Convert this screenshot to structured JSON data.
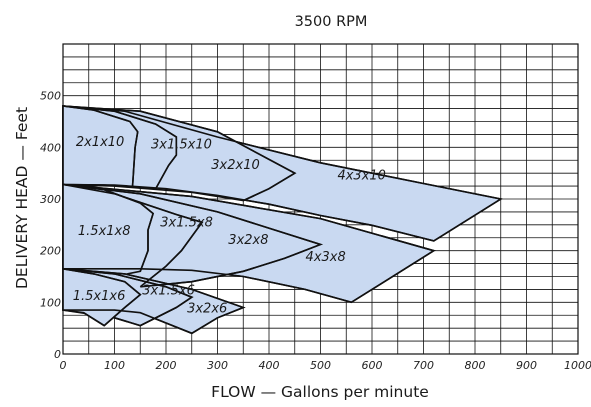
{
  "chart_data": {
    "type": "area",
    "title": "3500 RPM",
    "xlabel": "FLOW — Gallons per minute",
    "ylabel": "DELIVERY HEAD — Feet",
    "xlim": [
      0,
      1000
    ],
    "ylim": [
      0,
      600
    ],
    "x_ticks": [
      "0",
      "100",
      "200",
      "300",
      "400",
      "500",
      "600",
      "700",
      "800",
      "900",
      "1000"
    ],
    "y_ticks": [
      "0",
      "100",
      "200",
      "300",
      "400",
      "500"
    ],
    "x_tick_values": [
      0,
      100,
      200,
      300,
      400,
      500,
      600,
      700,
      800,
      900,
      1000
    ],
    "y_tick_values": [
      0,
      100,
      200,
      300,
      400,
      500
    ],
    "grid": true,
    "grid_minor": {
      "x_step": 50,
      "y_step": 25
    },
    "colors": {
      "fill": "#c9d9f1",
      "line": "#111111",
      "grid": "#111111",
      "background": "#ffffff"
    },
    "regions": [
      {
        "label": "4x3x10",
        "fill_poly": [
          [
            0,
            480
          ],
          [
            120,
            470
          ],
          [
            300,
            420
          ],
          [
            500,
            370
          ],
          [
            700,
            330
          ],
          [
            850,
            300
          ],
          [
            720,
            219
          ],
          [
            600,
            249
          ],
          [
            500,
            268
          ],
          [
            400,
            290
          ],
          [
            300,
            307
          ],
          [
            200,
            320
          ],
          [
            100,
            327
          ],
          [
            0,
            328
          ]
        ],
        "label_at": [
          580,
          338
        ]
      },
      {
        "label": "3x2x10",
        "fill_poly": [
          [
            0,
            480
          ],
          [
            150,
            470
          ],
          [
            300,
            430
          ],
          [
            450,
            350
          ],
          [
            400,
            320
          ],
          [
            350,
            297
          ],
          [
            250,
            313
          ],
          [
            100,
            325
          ],
          [
            0,
            328
          ]
        ],
        "label_at": [
          335,
          358
        ]
      },
      {
        "label": "3x1.5x10",
        "fill_poly": [
          [
            0,
            480
          ],
          [
            100,
            470
          ],
          [
            180,
            445
          ],
          [
            220,
            420
          ],
          [
            220,
            385
          ],
          [
            205,
            365
          ],
          [
            180,
            320
          ],
          [
            100,
            326
          ],
          [
            0,
            328
          ]
        ],
        "label_at": [
          230,
          398
        ]
      },
      {
        "label": "2x1x10",
        "fill_poly": [
          [
            0,
            480
          ],
          [
            60,
            472
          ],
          [
            130,
            450
          ],
          [
            145,
            430
          ],
          [
            140,
            400
          ],
          [
            135,
            323
          ],
          [
            80,
            327
          ],
          [
            0,
            328
          ]
        ],
        "label_at": [
          72,
          403
        ]
      },
      {
        "label": "4x3x8",
        "fill_poly": [
          [
            0,
            328
          ],
          [
            250,
            305
          ],
          [
            500,
            262
          ],
          [
            720,
            200
          ],
          [
            560,
            100
          ],
          [
            470,
            125
          ],
          [
            350,
            150
          ],
          [
            250,
            162
          ],
          [
            150,
            165
          ],
          [
            0,
            165
          ]
        ],
        "label_at": [
          510,
          180
        ]
      },
      {
        "label": "3x2x8",
        "fill_poly": [
          [
            0,
            328
          ],
          [
            150,
            310
          ],
          [
            300,
            275
          ],
          [
            500,
            212
          ],
          [
            430,
            185
          ],
          [
            350,
            160
          ],
          [
            250,
            140
          ],
          [
            150,
            130
          ],
          [
            0,
            165
          ]
        ],
        "label_at": [
          360,
          213
        ]
      },
      {
        "label": "3x1.5x8",
        "fill_poly": [
          [
            0,
            328
          ],
          [
            100,
            310
          ],
          [
            220,
            270
          ],
          [
            270,
            255
          ],
          [
            230,
            200
          ],
          [
            200,
            170
          ],
          [
            150,
            130
          ],
          [
            100,
            140
          ],
          [
            0,
            165
          ]
        ],
        "label_at": [
          240,
          247
        ]
      },
      {
        "label": "1.5x1x8",
        "fill_poly": [
          [
            0,
            328
          ],
          [
            80,
            318
          ],
          [
            150,
            292
          ],
          [
            175,
            272
          ],
          [
            165,
            240
          ],
          [
            165,
            200
          ],
          [
            150,
            160
          ],
          [
            100,
            150
          ],
          [
            0,
            165
          ]
        ],
        "label_at": [
          80,
          230
        ]
      },
      {
        "label": "3x2x6",
        "fill_poly": [
          [
            0,
            165
          ],
          [
            120,
            155
          ],
          [
            250,
            125
          ],
          [
            350,
            90
          ],
          [
            300,
            70
          ],
          [
            250,
            40
          ],
          [
            200,
            60
          ],
          [
            150,
            80
          ],
          [
            100,
            85
          ],
          [
            0,
            85
          ]
        ],
        "label_at": [
          280,
          80
        ]
      },
      {
        "label": "3x1.5x6",
        "fill_poly": [
          [
            0,
            165
          ],
          [
            100,
            155
          ],
          [
            200,
            130
          ],
          [
            250,
            110
          ],
          [
            220,
            90
          ],
          [
            150,
            55
          ],
          [
            100,
            70
          ],
          [
            0,
            85
          ]
        ],
        "label_at": [
          205,
          115
        ]
      },
      {
        "label": "1.5x1x6",
        "fill_poly": [
          [
            0,
            165
          ],
          [
            60,
            155
          ],
          [
            120,
            140
          ],
          [
            150,
            115
          ],
          [
            120,
            90
          ],
          [
            80,
            55
          ],
          [
            40,
            80
          ],
          [
            0,
            85
          ]
        ],
        "label_at": [
          70,
          105
        ]
      }
    ],
    "envelopes": [
      [
        [
          0,
          480
        ],
        [
          120,
          470
        ],
        [
          300,
          420
        ],
        [
          500,
          370
        ],
        [
          700,
          330
        ],
        [
          850,
          300
        ],
        [
          720,
          219
        ],
        [
          600,
          249
        ],
        [
          500,
          268
        ],
        [
          400,
          290
        ],
        [
          300,
          307
        ],
        [
          200,
          320
        ],
        [
          100,
          327
        ],
        [
          0,
          328
        ]
      ],
      [
        [
          0,
          480
        ],
        [
          150,
          470
        ],
        [
          300,
          430
        ],
        [
          450,
          350
        ],
        [
          400,
          320
        ],
        [
          350,
          297
        ]
      ],
      [
        [
          0,
          480
        ],
        [
          100,
          470
        ],
        [
          180,
          445
        ],
        [
          220,
          420
        ],
        [
          220,
          385
        ],
        [
          205,
          365
        ],
        [
          180,
          320
        ]
      ],
      [
        [
          0,
          480
        ],
        [
          60,
          472
        ],
        [
          130,
          450
        ],
        [
          145,
          430
        ],
        [
          140,
          400
        ],
        [
          135,
          323
        ]
      ],
      [
        [
          0,
          328
        ],
        [
          250,
          305
        ],
        [
          500,
          262
        ],
        [
          720,
          200
        ],
        [
          560,
          100
        ],
        [
          470,
          125
        ],
        [
          350,
          150
        ],
        [
          250,
          162
        ],
        [
          150,
          165
        ],
        [
          0,
          165
        ]
      ],
      [
        [
          0,
          328
        ],
        [
          150,
          310
        ],
        [
          300,
          275
        ],
        [
          500,
          212
        ],
        [
          430,
          185
        ],
        [
          350,
          160
        ],
        [
          250,
          140
        ],
        [
          150,
          130
        ]
      ],
      [
        [
          0,
          328
        ],
        [
          100,
          310
        ],
        [
          220,
          270
        ],
        [
          270,
          255
        ],
        [
          230,
          200
        ],
        [
          200,
          170
        ],
        [
          150,
          130
        ]
      ],
      [
        [
          0,
          328
        ],
        [
          80,
          318
        ],
        [
          150,
          292
        ],
        [
          175,
          272
        ],
        [
          165,
          240
        ],
        [
          165,
          200
        ],
        [
          150,
          160
        ]
      ],
      [
        [
          0,
          165
        ],
        [
          120,
          155
        ],
        [
          250,
          125
        ],
        [
          350,
          90
        ],
        [
          300,
          70
        ],
        [
          250,
          40
        ],
        [
          200,
          60
        ],
        [
          150,
          80
        ],
        [
          100,
          85
        ],
        [
          0,
          85
        ]
      ],
      [
        [
          0,
          165
        ],
        [
          100,
          155
        ],
        [
          200,
          130
        ],
        [
          250,
          110
        ],
        [
          220,
          90
        ],
        [
          150,
          55
        ],
        [
          100,
          70
        ]
      ],
      [
        [
          0,
          165
        ],
        [
          60,
          155
        ],
        [
          120,
          140
        ],
        [
          150,
          115
        ],
        [
          120,
          90
        ],
        [
          80,
          55
        ],
        [
          40,
          80
        ]
      ]
    ]
  }
}
